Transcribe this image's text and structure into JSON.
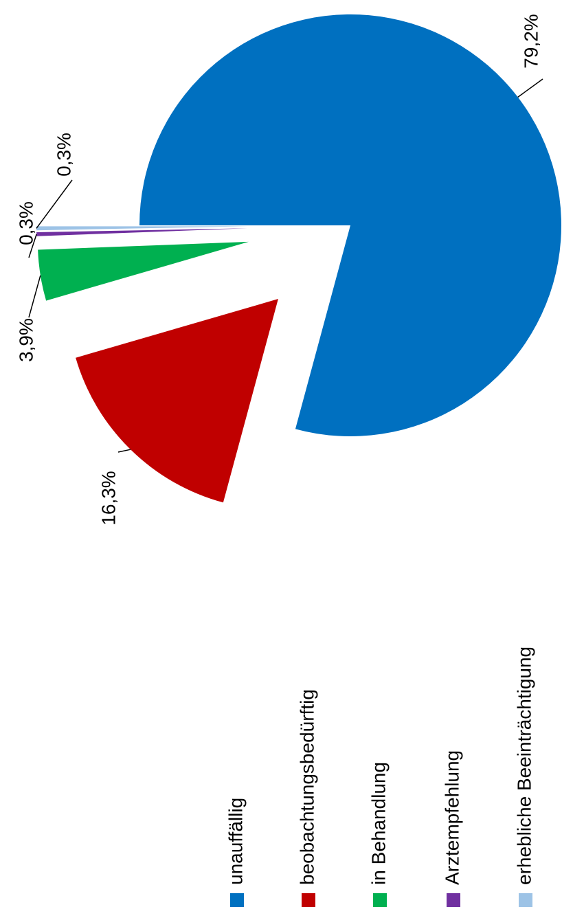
{
  "chart_data": {
    "type": "pie",
    "categories": [
      "unauffällig",
      "beobachtungsbedürftig",
      "in Behandlung",
      "Arztempfehlung",
      "erhebliche Beeinträchtigung"
    ],
    "values": [
      79.2,
      16.3,
      3.9,
      0.3,
      0.3
    ],
    "value_labels": [
      "79,2%",
      "16,3%",
      "3,9%",
      "0,3%",
      "0,3%"
    ],
    "colors": [
      "#0070c0",
      "#c00000",
      "#00b050",
      "#7030a0",
      "#9dc3e6"
    ]
  }
}
